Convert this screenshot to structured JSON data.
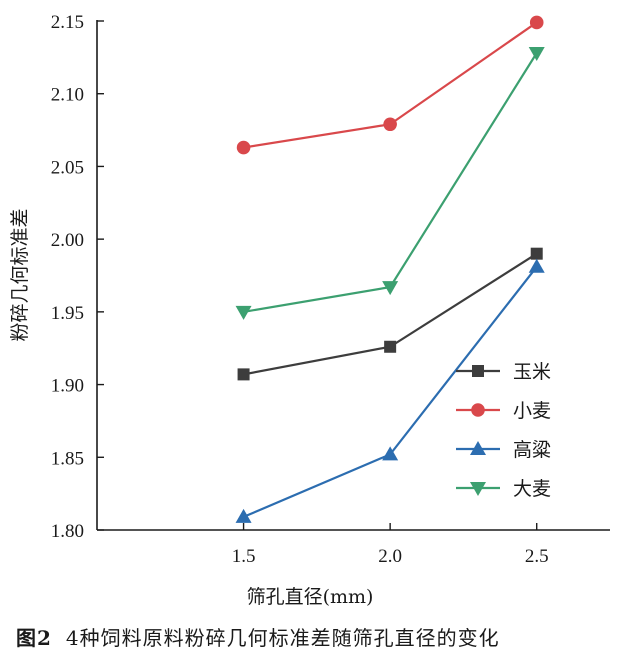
{
  "chart_data": {
    "type": "line",
    "xlabel": "筛孔直径(mm)",
    "ylabel": "粉碎几何标准差",
    "x": [
      1.5,
      2.0,
      2.5
    ],
    "x_tick_labels": [
      "1.5",
      "2.0",
      "2.5"
    ],
    "xlim": [
      1.0,
      2.75
    ],
    "ylim": [
      1.8,
      2.15
    ],
    "y_ticks": [
      1.8,
      1.85,
      1.9,
      1.95,
      2.0,
      2.05,
      2.1,
      2.15
    ],
    "y_tick_labels": [
      "1.80",
      "1.85",
      "1.90",
      "1.95",
      "2.00",
      "2.05",
      "2.10",
      "2.15"
    ],
    "legend_position": "lower-right",
    "series": [
      {
        "name": "玉米",
        "values": [
          1.907,
          1.926,
          1.99
        ],
        "color": "#3d3d3d",
        "marker": "square"
      },
      {
        "name": "小麦",
        "values": [
          2.063,
          2.079,
          2.149
        ],
        "color": "#d9484b",
        "marker": "circle"
      },
      {
        "name": "高粱",
        "values": [
          1.809,
          1.852,
          1.981
        ],
        "color": "#2c6db0",
        "marker": "triangle-up"
      },
      {
        "name": "大麦",
        "values": [
          1.95,
          1.967,
          2.128
        ],
        "color": "#3ca070",
        "marker": "triangle-down"
      }
    ]
  },
  "caption": {
    "number": "图2",
    "text": "4种饲料原料粉碎几何标准差随筛孔直径的变化"
  }
}
